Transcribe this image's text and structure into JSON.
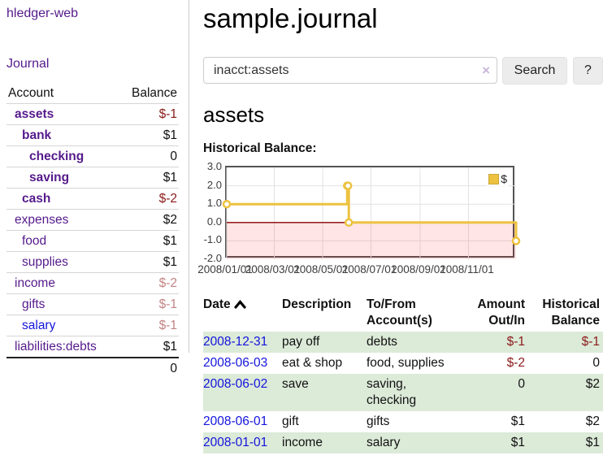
{
  "app": {
    "brand": "hledger-web",
    "nav_journal": "Journal"
  },
  "colors": {
    "link_purple": "#551a8b",
    "link_blue": "#1414dd",
    "negative_dark": "#8b1a1a",
    "negative_light": "#c38484",
    "stripe_green": "#dcead8",
    "series_gold": "#edc240",
    "zero_line_red": "#8b0000",
    "negative_region_pink": "rgba(255,0,0,0.10)"
  },
  "sidebar": {
    "header": {
      "account": "Account",
      "balance": "Balance"
    },
    "rows": [
      {
        "name": "assets",
        "level": 0,
        "bold": true,
        "link": "purple",
        "balance": "$-1",
        "balance_tone": "neg-dark"
      },
      {
        "name": "bank",
        "level": 1,
        "bold": true,
        "link": "purple",
        "balance": "$1",
        "balance_tone": ""
      },
      {
        "name": "checking",
        "level": 2,
        "bold": true,
        "link": "purple",
        "balance": "0",
        "balance_tone": ""
      },
      {
        "name": "saving",
        "level": 2,
        "bold": true,
        "link": "purple",
        "balance": "$1",
        "balance_tone": ""
      },
      {
        "name": "cash",
        "level": 1,
        "bold": true,
        "link": "purple",
        "balance": "$-2",
        "balance_tone": "neg-dark"
      },
      {
        "name": "expenses",
        "level": 0,
        "bold": false,
        "link": "purple",
        "balance": "$2",
        "balance_tone": ""
      },
      {
        "name": "food",
        "level": 1,
        "bold": false,
        "link": "purple",
        "balance": "$1",
        "balance_tone": ""
      },
      {
        "name": "supplies",
        "level": 1,
        "bold": false,
        "link": "purple",
        "balance": "$1",
        "balance_tone": ""
      },
      {
        "name": "income",
        "level": 0,
        "bold": false,
        "link": "purple",
        "balance": "$-2",
        "balance_tone": "neg-light"
      },
      {
        "name": "gifts",
        "level": 1,
        "bold": false,
        "link": "purple",
        "balance": "$-1",
        "balance_tone": "neg-light"
      },
      {
        "name": "salary",
        "level": 1,
        "bold": false,
        "link": "blue",
        "balance": "$-1",
        "balance_tone": "neg-light"
      },
      {
        "name": "liabilities:debts",
        "level": 0,
        "bold": false,
        "link": "purple",
        "balance": "$1",
        "balance_tone": ""
      }
    ],
    "total": "0"
  },
  "main": {
    "title": "sample.journal",
    "search": {
      "value": "inacct:assets",
      "clear_label": "×",
      "button_label": "Search",
      "help_label": "?"
    },
    "account_heading": "assets",
    "chart_label": "Historical Balance:"
  },
  "chart_data": {
    "type": "line",
    "style": "step-post",
    "title": "Historical Balance",
    "series": [
      {
        "name": "$",
        "points": [
          {
            "date": "2008-01-01",
            "value": 1
          },
          {
            "date": "2008-06-01",
            "value": 2
          },
          {
            "date": "2008-06-02",
            "value": 2
          },
          {
            "date": "2008-06-03",
            "value": 0
          },
          {
            "date": "2008-12-31",
            "value": -1
          }
        ]
      }
    ],
    "x_range": [
      "2008-01-01",
      "2008-12-31"
    ],
    "x_tick_labels": [
      "2008/01/01",
      "2008/03/01",
      "2008/05/01",
      "2008/07/01",
      "2008/09/01",
      "2008/11/01"
    ],
    "x_tick_dates": [
      "2008-01-01",
      "2008-03-01",
      "2008-05-01",
      "2008-07-01",
      "2008-09-01",
      "2008-11-01"
    ],
    "y_tick_labels": [
      "3.0",
      "2.0",
      "1.0",
      "0.0",
      "-1.0",
      "-2.0"
    ],
    "ylim": [
      -2,
      3
    ],
    "grid": true,
    "legend_position": "top-right",
    "negative_region_shaded": true
  },
  "register": {
    "columns": [
      {
        "line1": "Date",
        "line2": "",
        "align": "left",
        "sorted": "asc"
      },
      {
        "line1": "Description",
        "line2": "",
        "align": "left"
      },
      {
        "line1": "To/From",
        "line2": "Account(s)",
        "align": "left"
      },
      {
        "line1": "Amount",
        "line2": "Out/In",
        "align": "right"
      },
      {
        "line1": "Historical",
        "line2": "Balance",
        "align": "right"
      }
    ],
    "rows": [
      {
        "date": "2008-12-31",
        "description": "pay off",
        "accounts": "debts",
        "amount": "$-1",
        "amount_tone": "neg-dark",
        "balance": "$-1",
        "balance_tone": "neg-dark",
        "stripe": true
      },
      {
        "date": "2008-06-03",
        "description": "eat & shop",
        "accounts": "food, supplies",
        "amount": "$-2",
        "amount_tone": "neg-dark",
        "balance": "0",
        "balance_tone": "",
        "stripe": false
      },
      {
        "date": "2008-06-02",
        "description": "save",
        "accounts": "saving,\nchecking",
        "amount": "0",
        "amount_tone": "",
        "balance": "$2",
        "balance_tone": "",
        "stripe": true
      },
      {
        "date": "2008-06-01",
        "description": "gift",
        "accounts": "gifts",
        "amount": "$1",
        "amount_tone": "",
        "balance": "$2",
        "balance_tone": "",
        "stripe": false
      },
      {
        "date": "2008-01-01",
        "description": "income",
        "accounts": "salary",
        "amount": "$1",
        "amount_tone": "",
        "balance": "$1",
        "balance_tone": "",
        "stripe": true
      }
    ]
  }
}
